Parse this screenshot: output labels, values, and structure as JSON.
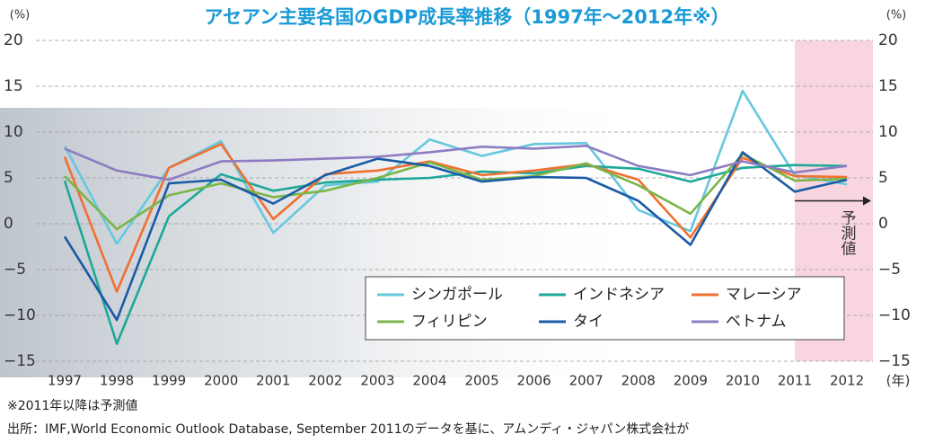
{
  "chart_data": {
    "type": "line",
    "title": "アセアン主要各国のGDP成長率推移（1997年～2012年※）",
    "y_unit": "(%)",
    "y2_unit": "(%)",
    "x_unit": "(年)",
    "categories": [
      "1997",
      "1998",
      "1999",
      "2000",
      "2001",
      "2002",
      "2003",
      "2004",
      "2005",
      "2006",
      "2007",
      "2008",
      "2009",
      "2010",
      "2011",
      "2012"
    ],
    "series": [
      {
        "name": "シンガポール",
        "color": "#66c8dd",
        "values": [
          8.5,
          -2.2,
          6.1,
          9.0,
          -1.0,
          4.2,
          4.6,
          9.2,
          7.4,
          8.7,
          8.8,
          1.5,
          -0.8,
          14.5,
          5.3,
          4.3
        ]
      },
      {
        "name": "インドネシア",
        "color": "#1ea898",
        "values": [
          4.7,
          -13.1,
          0.8,
          5.4,
          3.6,
          4.5,
          4.8,
          5.0,
          5.7,
          5.5,
          6.3,
          6.0,
          4.6,
          6.1,
          6.4,
          6.3
        ]
      },
      {
        "name": "マレーシア",
        "color": "#f07030",
        "values": [
          7.3,
          -7.4,
          6.1,
          8.7,
          0.5,
          5.4,
          5.8,
          6.8,
          5.3,
          5.8,
          6.5,
          4.8,
          -1.5,
          7.2,
          5.2,
          5.1
        ]
      },
      {
        "name": "フィリピン",
        "color": "#7ab648",
        "values": [
          5.2,
          -0.6,
          3.1,
          4.4,
          2.9,
          3.6,
          5.0,
          6.7,
          4.8,
          5.2,
          6.6,
          4.2,
          1.1,
          7.6,
          4.7,
          4.9
        ]
      },
      {
        "name": "タイ",
        "color": "#1b5ba6",
        "values": [
          -1.4,
          -10.5,
          4.4,
          4.8,
          2.2,
          5.3,
          7.1,
          6.3,
          4.6,
          5.1,
          5.0,
          2.5,
          -2.3,
          7.8,
          3.5,
          4.8
        ]
      },
      {
        "name": "ベトナム",
        "color": "#8e7cc3",
        "values": [
          8.2,
          5.8,
          4.8,
          6.8,
          6.9,
          7.1,
          7.3,
          7.8,
          8.4,
          8.2,
          8.5,
          6.3,
          5.3,
          6.8,
          5.6,
          6.3
        ]
      }
    ],
    "ylim": [
      -15,
      20
    ],
    "yticks": [
      20,
      15,
      10,
      5,
      0,
      {
        "value": -5,
        "label": "−5"
      },
      {
        "value": -10,
        "label": "−10"
      },
      {
        "value": -15,
        "label": "−15"
      }
    ],
    "y2lim": [
      -15,
      20
    ],
    "y2ticks": [
      20,
      15,
      10,
      5,
      0,
      {
        "value": -5,
        "label": "−5"
      },
      {
        "value": -10,
        "label": "−10"
      },
      {
        "value": -15,
        "label": "−15"
      }
    ],
    "grid": true,
    "forecast_from": "2011",
    "forecast_label": "予測値",
    "notes": [
      "※2011年以降は予測値",
      "出所：IMF,World Economic Outlook Database, September 2011のデータを基に、アムンディ・ジャパン株式会社が"
    ]
  }
}
